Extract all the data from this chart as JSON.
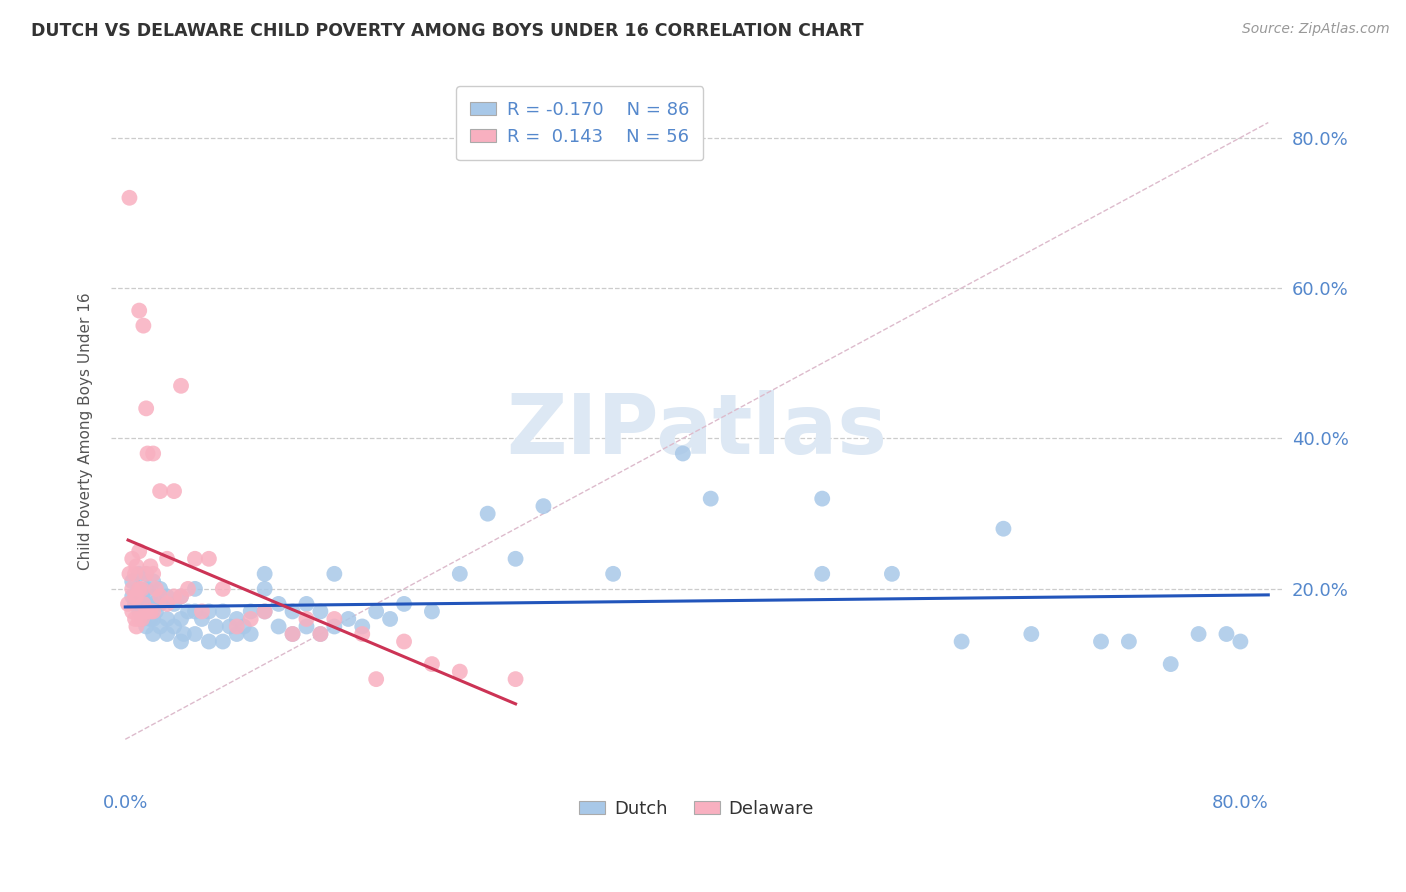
{
  "title": "DUTCH VS DELAWARE CHILD POVERTY AMONG BOYS UNDER 16 CORRELATION CHART",
  "source": "Source: ZipAtlas.com",
  "ylabel": "Child Poverty Among Boys Under 16",
  "xlim": [
    -0.01,
    0.83
  ],
  "ylim": [
    -0.06,
    0.88
  ],
  "dutch_R": -0.17,
  "dutch_N": 86,
  "delaware_R": 0.143,
  "delaware_N": 56,
  "dutch_color": "#a8c8e8",
  "dutch_line_color": "#2255bb",
  "delaware_color": "#f8b0c0",
  "delaware_line_color": "#cc3355",
  "watermark_color": "#dde8f4",
  "grid_color": "#cccccc",
  "tick_color": "#5588cc",
  "title_color": "#333333",
  "source_color": "#999999",
  "ylabel_color": "#555555",
  "dutch_x": [
    0.005,
    0.005,
    0.007,
    0.01,
    0.01,
    0.01,
    0.012,
    0.012,
    0.013,
    0.015,
    0.015,
    0.015,
    0.015,
    0.018,
    0.018,
    0.02,
    0.02,
    0.02,
    0.02,
    0.022,
    0.025,
    0.025,
    0.025,
    0.03,
    0.03,
    0.03,
    0.035,
    0.035,
    0.04,
    0.04,
    0.04,
    0.042,
    0.045,
    0.05,
    0.05,
    0.05,
    0.055,
    0.06,
    0.06,
    0.065,
    0.07,
    0.07,
    0.075,
    0.08,
    0.08,
    0.085,
    0.09,
    0.09,
    0.1,
    0.1,
    0.1,
    0.11,
    0.11,
    0.12,
    0.12,
    0.13,
    0.13,
    0.14,
    0.14,
    0.15,
    0.15,
    0.16,
    0.17,
    0.18,
    0.19,
    0.2,
    0.22,
    0.24,
    0.26,
    0.28,
    0.3,
    0.35,
    0.4,
    0.42,
    0.5,
    0.5,
    0.55,
    0.6,
    0.63,
    0.65,
    0.7,
    0.72,
    0.75,
    0.77,
    0.79,
    0.8
  ],
  "dutch_y": [
    0.19,
    0.21,
    0.18,
    0.17,
    0.2,
    0.22,
    0.16,
    0.19,
    0.17,
    0.15,
    0.18,
    0.2,
    0.22,
    0.16,
    0.19,
    0.14,
    0.16,
    0.18,
    0.21,
    0.17,
    0.15,
    0.18,
    0.2,
    0.14,
    0.16,
    0.19,
    0.15,
    0.18,
    0.13,
    0.16,
    0.19,
    0.14,
    0.17,
    0.14,
    0.17,
    0.2,
    0.16,
    0.13,
    0.17,
    0.15,
    0.13,
    0.17,
    0.15,
    0.14,
    0.16,
    0.15,
    0.14,
    0.17,
    0.17,
    0.2,
    0.22,
    0.15,
    0.18,
    0.14,
    0.17,
    0.15,
    0.18,
    0.14,
    0.17,
    0.15,
    0.22,
    0.16,
    0.15,
    0.17,
    0.16,
    0.18,
    0.17,
    0.22,
    0.3,
    0.24,
    0.31,
    0.22,
    0.38,
    0.32,
    0.22,
    0.32,
    0.22,
    0.13,
    0.28,
    0.14,
    0.13,
    0.13,
    0.1,
    0.14,
    0.14,
    0.13
  ],
  "delaware_x": [
    0.002,
    0.003,
    0.003,
    0.005,
    0.005,
    0.005,
    0.007,
    0.007,
    0.007,
    0.008,
    0.008,
    0.008,
    0.01,
    0.01,
    0.01,
    0.01,
    0.012,
    0.012,
    0.013,
    0.013,
    0.015,
    0.015,
    0.015,
    0.016,
    0.018,
    0.018,
    0.02,
    0.02,
    0.02,
    0.022,
    0.025,
    0.025,
    0.03,
    0.03,
    0.035,
    0.035,
    0.04,
    0.04,
    0.045,
    0.05,
    0.055,
    0.06,
    0.07,
    0.08,
    0.09,
    0.1,
    0.12,
    0.13,
    0.14,
    0.15,
    0.17,
    0.18,
    0.2,
    0.22,
    0.24,
    0.28
  ],
  "delaware_y": [
    0.18,
    0.22,
    0.72,
    0.17,
    0.2,
    0.24,
    0.16,
    0.19,
    0.22,
    0.15,
    0.19,
    0.23,
    0.16,
    0.2,
    0.25,
    0.57,
    0.16,
    0.2,
    0.18,
    0.55,
    0.17,
    0.22,
    0.44,
    0.38,
    0.17,
    0.23,
    0.17,
    0.22,
    0.38,
    0.2,
    0.19,
    0.33,
    0.18,
    0.24,
    0.19,
    0.33,
    0.19,
    0.47,
    0.2,
    0.24,
    0.17,
    0.24,
    0.2,
    0.15,
    0.16,
    0.17,
    0.14,
    0.16,
    0.14,
    0.16,
    0.14,
    0.08,
    0.13,
    0.1,
    0.09,
    0.08
  ]
}
